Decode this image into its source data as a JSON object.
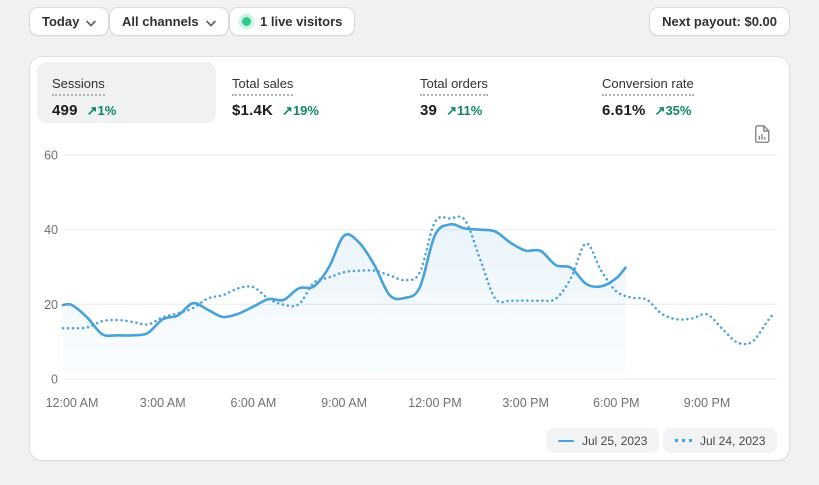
{
  "topbar": {
    "date_filter_label": "Today",
    "channel_filter_label": "All channels",
    "live_visitors_label": "1 live visitors",
    "next_payout_label": "Next payout: $0.00"
  },
  "metrics": [
    {
      "label": "Sessions",
      "value": "499",
      "arrow": "↗",
      "delta": "1%",
      "selected": true
    },
    {
      "label": "Total sales",
      "value": "$1.4K",
      "arrow": "↗",
      "delta": "19%",
      "selected": false
    },
    {
      "label": "Total orders",
      "value": "39",
      "arrow": "↗",
      "delta": "11%",
      "selected": false
    },
    {
      "label": "Conversion rate",
      "value": "6.61%",
      "arrow": "↗",
      "delta": "35%",
      "selected": false
    }
  ],
  "colors": {
    "line_blue": "#47a1db",
    "area_fill": "rgba(71,161,219,0.16)",
    "grid": "#e9ebed",
    "axis_text": "#6d7175",
    "success_green": "#0f8a60",
    "live_dot": "#2fc88b"
  },
  "chart_data": {
    "type": "line",
    "x_axis": {
      "unit": "hour-of-day",
      "ticks": [
        {
          "hour": 0,
          "label": "12:00 AM"
        },
        {
          "hour": 3,
          "label": "3:00 AM"
        },
        {
          "hour": 6,
          "label": "6:00 AM"
        },
        {
          "hour": 9,
          "label": "9:00 AM"
        },
        {
          "hour": 12,
          "label": "12:00 PM"
        },
        {
          "hour": 15,
          "label": "3:00 PM"
        },
        {
          "hour": 18,
          "label": "6:00 PM"
        },
        {
          "hour": 21,
          "label": "9:00 PM"
        }
      ]
    },
    "y_axis": {
      "ticks": [
        0,
        20,
        40,
        60
      ],
      "range": [
        0,
        60
      ]
    },
    "grid": "horizontal",
    "legend_position": "bottom-right",
    "series": [
      {
        "name": "Jul 25, 2023",
        "style": "solid",
        "color": "#47a1db",
        "area_fill": true,
        "points": [
          [
            0,
            19.8
          ],
          [
            0.5,
            16.5
          ],
          [
            1,
            12
          ],
          [
            1.5,
            11.7
          ],
          [
            2,
            11.7
          ],
          [
            2.5,
            12.3
          ],
          [
            3,
            16
          ],
          [
            3.5,
            17
          ],
          [
            4,
            20.3
          ],
          [
            4.5,
            18.5
          ],
          [
            5,
            16.6
          ],
          [
            5.5,
            17.5
          ],
          [
            6,
            19.4
          ],
          [
            6.5,
            21.4
          ],
          [
            7,
            21.2
          ],
          [
            7.5,
            24.3
          ],
          [
            8,
            24.8
          ],
          [
            8.5,
            30
          ],
          [
            9,
            38.4
          ],
          [
            9.5,
            36.5
          ],
          [
            10,
            30.5
          ],
          [
            10.5,
            22.5
          ],
          [
            11,
            21.7
          ],
          [
            11.5,
            24.5
          ],
          [
            12,
            38.5
          ],
          [
            12.5,
            41.4
          ],
          [
            13,
            40.3
          ],
          [
            13.5,
            40
          ],
          [
            14,
            39.5
          ],
          [
            14.5,
            36.5
          ],
          [
            15,
            34.4
          ],
          [
            15.5,
            34.3
          ],
          [
            16,
            30.5
          ],
          [
            16.5,
            29.8
          ],
          [
            17,
            25.5
          ],
          [
            17.5,
            24.8
          ],
          [
            18,
            27
          ],
          [
            18.3,
            29.8
          ]
        ]
      },
      {
        "name": "Jul 24, 2023",
        "style": "dotted",
        "color": "#47a1db",
        "area_fill": false,
        "points": [
          [
            0,
            13.6
          ],
          [
            0.5,
            13.8
          ],
          [
            1,
            15.5
          ],
          [
            1.5,
            15.8
          ],
          [
            2,
            15.3
          ],
          [
            2.5,
            14.6
          ],
          [
            3,
            16.5
          ],
          [
            3.5,
            17.6
          ],
          [
            4,
            19
          ],
          [
            4.5,
            21.6
          ],
          [
            5,
            22.5
          ],
          [
            5.5,
            24.3
          ],
          [
            6,
            24.6
          ],
          [
            6.5,
            21.5
          ],
          [
            7,
            19.9
          ],
          [
            7.5,
            20
          ],
          [
            8,
            25.8
          ],
          [
            8.5,
            27.2
          ],
          [
            9,
            28.6
          ],
          [
            9.5,
            29
          ],
          [
            10,
            29
          ],
          [
            10.5,
            27.8
          ],
          [
            11,
            26.5
          ],
          [
            11.5,
            28.5
          ],
          [
            12,
            42
          ],
          [
            12.5,
            43
          ],
          [
            13,
            42.5
          ],
          [
            13.5,
            32
          ],
          [
            14,
            21.5
          ],
          [
            14.5,
            21
          ],
          [
            15,
            21
          ],
          [
            15.5,
            21
          ],
          [
            16,
            21.5
          ],
          [
            16.5,
            27
          ],
          [
            17,
            36.3
          ],
          [
            17.5,
            29
          ],
          [
            18,
            23.5
          ],
          [
            18.5,
            21.8
          ],
          [
            19,
            21.3
          ],
          [
            19.5,
            17.5
          ],
          [
            20,
            16
          ],
          [
            20.5,
            16.2
          ],
          [
            21,
            17.3
          ],
          [
            21.5,
            13.5
          ],
          [
            22,
            9.8
          ],
          [
            22.5,
            10
          ],
          [
            23,
            15.5
          ],
          [
            23.2,
            17.5
          ]
        ]
      }
    ]
  }
}
